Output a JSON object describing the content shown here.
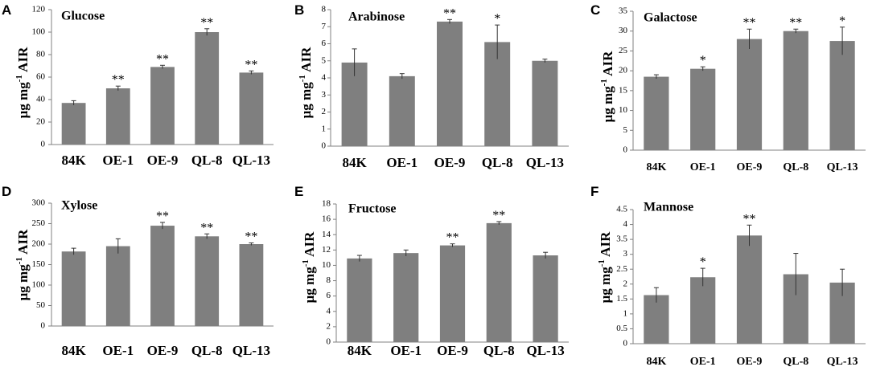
{
  "figure": {
    "categories": [
      "84K",
      "OE-1",
      "OE-9",
      "QL-8",
      "QL-13"
    ],
    "bar_color": "#7f7f7f",
    "axis_color": "#808080",
    "ylabel_parts": [
      "μg mg",
      "-1",
      " AIR"
    ]
  },
  "chart_data": [
    {
      "type": "bar",
      "letter": "A",
      "title": "Glucose",
      "categories": [
        "84K",
        "OE-1",
        "OE-9",
        "QL-8",
        "QL-13"
      ],
      "values": [
        37,
        50,
        69,
        100,
        64
      ],
      "errors": [
        2,
        2,
        1.5,
        3,
        1.5
      ],
      "significance": [
        "",
        "**",
        "**",
        "**",
        "**"
      ],
      "ylim": [
        0,
        120
      ],
      "yticks": [
        0,
        20,
        40,
        60,
        80,
        100,
        120
      ],
      "xlabel": "",
      "ylabel": "μg mg-1 AIR"
    },
    {
      "type": "bar",
      "letter": "B",
      "title": "Arabinose",
      "categories": [
        "84K",
        "OE-1",
        "OE-9",
        "QL-8",
        "QL-13"
      ],
      "values": [
        4.9,
        4.1,
        7.3,
        6.1,
        5.0
      ],
      "errors": [
        0.8,
        0.15,
        0.12,
        1.0,
        0.1
      ],
      "significance": [
        "",
        "",
        "**",
        "*",
        ""
      ],
      "ylim": [
        0,
        8
      ],
      "yticks": [
        0,
        1,
        2,
        3,
        4,
        5,
        6,
        7,
        8
      ],
      "xlabel": "",
      "ylabel": "μg mg-1 AIR"
    },
    {
      "type": "bar",
      "letter": "C",
      "title": "Galactose",
      "categories": [
        "84K",
        "OE-1",
        "OE-9",
        "QL-8",
        "QL-13"
      ],
      "values": [
        18.5,
        20.5,
        28,
        30,
        27.5
      ],
      "errors": [
        0.5,
        0.5,
        2.5,
        0.5,
        3.5
      ],
      "significance": [
        "",
        "*",
        "**",
        "**",
        "*"
      ],
      "ylim": [
        0,
        35
      ],
      "yticks": [
        0,
        5,
        10,
        15,
        20,
        25,
        30,
        35
      ],
      "xlabel": "",
      "ylabel": "μg mg-1 AIR"
    },
    {
      "type": "bar",
      "letter": "D",
      "title": "Xylose",
      "categories": [
        "84K",
        "OE-1",
        "OE-9",
        "QL-8",
        "QL-13"
      ],
      "values": [
        182,
        195,
        245,
        219,
        200
      ],
      "errors": [
        8,
        18,
        8,
        6,
        3
      ],
      "significance": [
        "",
        "",
        "**",
        "**",
        "**"
      ],
      "ylim": [
        0,
        300
      ],
      "yticks": [
        0,
        50,
        100,
        150,
        200,
        250,
        300
      ],
      "xlabel": "",
      "ylabel": "μg mg-1 AIR"
    },
    {
      "type": "bar",
      "letter": "E",
      "title": "Fructose",
      "categories": [
        "84K",
        "OE-1",
        "OE-9",
        "QL-8",
        "QL-13"
      ],
      "values": [
        10.9,
        11.6,
        12.6,
        15.5,
        11.3
      ],
      "errors": [
        0.4,
        0.4,
        0.2,
        0.2,
        0.4
      ],
      "significance": [
        "",
        "",
        "**",
        "**",
        ""
      ],
      "ylim": [
        0,
        18
      ],
      "yticks": [
        0,
        2,
        4,
        6,
        8,
        10,
        12,
        14,
        16,
        18
      ],
      "xlabel": "",
      "ylabel": "μg mg-1 AIR"
    },
    {
      "type": "bar",
      "letter": "F",
      "title": "Mannose",
      "categories": [
        "84K",
        "OE-1",
        "OE-9",
        "QL-8",
        "QL-13"
      ],
      "values": [
        1.63,
        2.23,
        3.63,
        2.33,
        2.05
      ],
      "errors": [
        0.25,
        0.3,
        0.35,
        0.7,
        0.45
      ],
      "significance": [
        "",
        "*",
        "**",
        "",
        ""
      ],
      "ylim": [
        0,
        4.5
      ],
      "yticks": [
        0,
        0.5,
        1,
        1.5,
        2,
        2.5,
        3,
        3.5,
        4,
        4.5
      ],
      "xlabel": "",
      "ylabel": "μg mg-1 AIR"
    }
  ]
}
